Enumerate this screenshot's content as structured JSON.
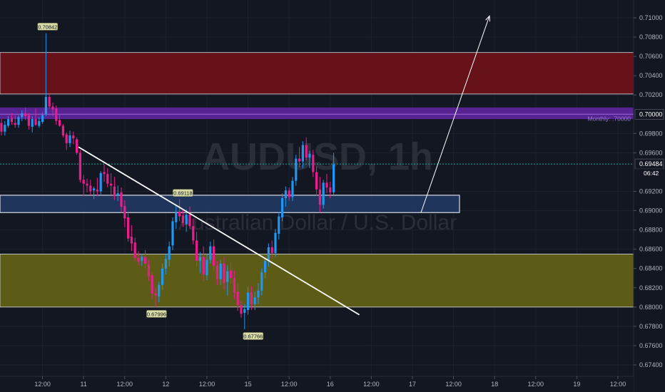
{
  "chart_data": {
    "type": "candlestick",
    "watermark": {
      "symbol": "AUDUSD, 1h",
      "description": "Australian Dollar / U.S. Dollar"
    },
    "y_axis": {
      "min": 0.673,
      "max": 0.7115,
      "ticks": [
        "0.67400",
        "0.67600",
        "0.67800",
        "0.68000",
        "0.68200",
        "0.68400",
        "0.68600",
        "0.68800",
        "0.69000",
        "0.69200",
        "0.69600",
        "0.69800",
        "0.70200",
        "0.70400",
        "0.70600",
        "0.70800",
        "0.71000"
      ],
      "tick_values": [
        0.674,
        0.676,
        0.678,
        0.68,
        0.682,
        0.684,
        0.686,
        0.688,
        0.69,
        0.692,
        0.696,
        0.698,
        0.702,
        0.704,
        0.706,
        0.708,
        0.71
      ]
    },
    "x_axis": {
      "labels": [
        "12:00",
        "11",
        "12:00",
        "12",
        "12:00",
        "15",
        "12:00",
        "16",
        "12:00",
        "17",
        "12:00",
        "18",
        "12:00",
        "19",
        "12:00"
      ],
      "hours": [
        12,
        24,
        36,
        48,
        60,
        72,
        84,
        96,
        108,
        120,
        132,
        144,
        156,
        168,
        180
      ]
    },
    "zones": [
      {
        "name": "supply-zone",
        "top": 0.7064,
        "bottom": 0.7021,
        "color": "#6b1118"
      },
      {
        "name": "monthly-level-zone",
        "top": 0.7007,
        "bottom": 0.6995,
        "color": "#5b2499"
      },
      {
        "name": "support-zone",
        "top": 0.6916,
        "bottom": 0.6898,
        "color": "#233b66"
      },
      {
        "name": "demand-zone",
        "top": 0.6855,
        "bottom": 0.68,
        "color": "#606016"
      }
    ],
    "price_labels": [
      {
        "text": "0.70842",
        "price": 0.70842,
        "hour": 13.5
      },
      {
        "text": "0.69118",
        "price": 0.69118,
        "hour": 53.0
      },
      {
        "text": "0.67996",
        "price": 0.67996,
        "hour": 45.3
      },
      {
        "text": "0.67766",
        "price": 0.67766,
        "hour": 73.5
      }
    ],
    "monthly_label": {
      "text": "Monthly: .70000",
      "price": 0.7
    },
    "current_price": {
      "text": "0.69484",
      "price": 0.69484
    },
    "secondary_price": {
      "price": 0.7,
      "text": "0.70000"
    },
    "countdown": "06:42",
    "trendline": {
      "from": {
        "hour": 22.5,
        "price": 0.6966
      },
      "to": {
        "hour": 104.5,
        "price": 0.6792
      }
    },
    "projection_arrow": {
      "from": {
        "hour": 122.5,
        "price": 0.6898
      },
      "to": {
        "hour": 142.5,
        "price": 0.7102
      }
    },
    "candles": [
      [
        0,
        0.6991,
        0.6995,
        0.6978,
        0.6982
      ],
      [
        1,
        0.6982,
        0.6993,
        0.6978,
        0.6989
      ],
      [
        2,
        0.6988,
        0.6998,
        0.6986,
        0.6995
      ],
      [
        3,
        0.6996,
        0.7001,
        0.6989,
        0.6992
      ],
      [
        4,
        0.6991,
        0.6999,
        0.6986,
        0.6989
      ],
      [
        5,
        0.6989,
        0.6999,
        0.6986,
        0.6997
      ],
      [
        6,
        0.6997,
        0.7004,
        0.6993,
        0.7001
      ],
      [
        7,
        0.7001,
        0.7007,
        0.6994,
        0.6998
      ],
      [
        8,
        0.6999,
        0.7001,
        0.6984,
        0.6988
      ],
      [
        9,
        0.6987,
        0.6998,
        0.6981,
        0.6995
      ],
      [
        10,
        0.6995,
        0.7006,
        0.6988,
        0.6989
      ],
      [
        11,
        0.6988,
        0.6997,
        0.6986,
        0.6993
      ],
      [
        12,
        0.6992,
        0.7002,
        0.699,
        0.6999
      ],
      [
        13,
        0.7,
        0.7084,
        0.6998,
        0.7018
      ],
      [
        14,
        0.7018,
        0.7022,
        0.7006,
        0.7008
      ],
      [
        15,
        0.7008,
        0.7012,
        0.6998,
        0.7005
      ],
      [
        16,
        0.7006,
        0.7009,
        0.6989,
        0.6993
      ],
      [
        17,
        0.6994,
        0.6999,
        0.6987,
        0.6988
      ],
      [
        18,
        0.6988,
        0.699,
        0.6976,
        0.6978
      ],
      [
        19,
        0.6979,
        0.6981,
        0.6963,
        0.697
      ],
      [
        20,
        0.697,
        0.6983,
        0.6966,
        0.6978
      ],
      [
        21,
        0.6978,
        0.6982,
        0.6969,
        0.6975
      ],
      [
        22,
        0.6974,
        0.6976,
        0.6958,
        0.696
      ],
      [
        23,
        0.696,
        0.6963,
        0.6929,
        0.6932
      ],
      [
        24,
        0.6932,
        0.6937,
        0.6915,
        0.6928
      ],
      [
        25,
        0.6928,
        0.6933,
        0.6919,
        0.6926
      ],
      [
        26,
        0.6926,
        0.6932,
        0.6916,
        0.692
      ],
      [
        27,
        0.6921,
        0.6925,
        0.6912,
        0.6923
      ],
      [
        28,
        0.6922,
        0.6934,
        0.6915,
        0.692
      ],
      [
        29,
        0.692,
        0.6941,
        0.6916,
        0.6939
      ],
      [
        30,
        0.694,
        0.6948,
        0.693,
        0.6938
      ],
      [
        31,
        0.6938,
        0.6944,
        0.6924,
        0.6928
      ],
      [
        32,
        0.6928,
        0.6939,
        0.6916,
        0.6926
      ],
      [
        33,
        0.6925,
        0.6935,
        0.6911,
        0.6915
      ],
      [
        34,
        0.6916,
        0.6926,
        0.691,
        0.6918
      ],
      [
        35,
        0.6919,
        0.6924,
        0.6898,
        0.6904
      ],
      [
        36,
        0.6905,
        0.6911,
        0.6883,
        0.6892
      ],
      [
        37,
        0.6893,
        0.6898,
        0.6868,
        0.6871
      ],
      [
        38,
        0.6873,
        0.6885,
        0.6858,
        0.6866
      ],
      [
        39,
        0.6867,
        0.6872,
        0.6848,
        0.6851
      ],
      [
        40,
        0.6851,
        0.6858,
        0.6843,
        0.6847
      ],
      [
        41,
        0.6848,
        0.6855,
        0.6843,
        0.6852
      ],
      [
        42,
        0.6852,
        0.6859,
        0.684,
        0.6845
      ],
      [
        43,
        0.6844,
        0.6849,
        0.6827,
        0.6832
      ],
      [
        44,
        0.6833,
        0.6836,
        0.6808,
        0.6814
      ],
      [
        45,
        0.6814,
        0.682,
        0.68,
        0.6812
      ],
      [
        46,
        0.6811,
        0.6826,
        0.6805,
        0.6823
      ],
      [
        47,
        0.6823,
        0.6845,
        0.6818,
        0.684
      ],
      [
        48,
        0.684,
        0.6855,
        0.6834,
        0.685
      ],
      [
        49,
        0.6849,
        0.6868,
        0.6842,
        0.6863
      ],
      [
        50,
        0.6864,
        0.6893,
        0.6859,
        0.6889
      ],
      [
        51,
        0.6888,
        0.6906,
        0.6881,
        0.6898
      ],
      [
        52,
        0.6899,
        0.6912,
        0.6889,
        0.6894
      ],
      [
        53,
        0.6895,
        0.6902,
        0.6883,
        0.6887
      ],
      [
        54,
        0.6886,
        0.6901,
        0.6878,
        0.6896
      ],
      [
        55,
        0.6896,
        0.6904,
        0.6881,
        0.6884
      ],
      [
        56,
        0.6884,
        0.6892,
        0.6865,
        0.6869
      ],
      [
        57,
        0.6869,
        0.6878,
        0.6842,
        0.6848
      ],
      [
        58,
        0.6848,
        0.6857,
        0.6835,
        0.6852
      ],
      [
        59,
        0.6852,
        0.6863,
        0.6827,
        0.6834
      ],
      [
        60,
        0.6833,
        0.6855,
        0.6828,
        0.6849
      ],
      [
        61,
        0.6849,
        0.6868,
        0.6845,
        0.6863
      ],
      [
        62,
        0.6863,
        0.687,
        0.6838,
        0.6843
      ],
      [
        63,
        0.6843,
        0.6848,
        0.6823,
        0.6829
      ],
      [
        64,
        0.6829,
        0.6849,
        0.6823,
        0.6845
      ],
      [
        65,
        0.6845,
        0.6852,
        0.6818,
        0.6825
      ],
      [
        66,
        0.6826,
        0.6843,
        0.6812,
        0.6837
      ],
      [
        67,
        0.6838,
        0.6846,
        0.6824,
        0.683
      ],
      [
        68,
        0.683,
        0.6838,
        0.6808,
        0.6815
      ],
      [
        69,
        0.6816,
        0.6824,
        0.6796,
        0.6802
      ],
      [
        70,
        0.6802,
        0.6806,
        0.6789,
        0.6793
      ],
      [
        71,
        0.6794,
        0.6803,
        0.6777,
        0.6798
      ],
      [
        72,
        0.6797,
        0.6821,
        0.6792,
        0.6815
      ],
      [
        73,
        0.6815,
        0.6822,
        0.6797,
        0.6803
      ],
      [
        74,
        0.6803,
        0.6816,
        0.6797,
        0.681
      ],
      [
        75,
        0.681,
        0.6825,
        0.6803,
        0.6817
      ],
      [
        76,
        0.6817,
        0.684,
        0.6812,
        0.6836
      ],
      [
        77,
        0.6836,
        0.6851,
        0.683,
        0.6848
      ],
      [
        78,
        0.6848,
        0.6866,
        0.6842,
        0.6862
      ],
      [
        79,
        0.6862,
        0.6869,
        0.685,
        0.6856
      ],
      [
        80,
        0.6856,
        0.6881,
        0.6852,
        0.6877
      ],
      [
        81,
        0.6876,
        0.6898,
        0.687,
        0.6894
      ],
      [
        82,
        0.6893,
        0.6918,
        0.6889,
        0.6913
      ],
      [
        83,
        0.6913,
        0.6925,
        0.6904,
        0.6921
      ],
      [
        84,
        0.6921,
        0.6924,
        0.691,
        0.6914
      ],
      [
        85,
        0.6914,
        0.6935,
        0.691,
        0.6931
      ],
      [
        86,
        0.6931,
        0.6958,
        0.6926,
        0.6954
      ],
      [
        87,
        0.6954,
        0.6966,
        0.6945,
        0.6951
      ],
      [
        88,
        0.6951,
        0.6972,
        0.6944,
        0.6968
      ],
      [
        89,
        0.6968,
        0.6976,
        0.6952,
        0.6955
      ],
      [
        90,
        0.6955,
        0.6962,
        0.6944,
        0.6959
      ],
      [
        91,
        0.6958,
        0.6963,
        0.6935,
        0.694
      ],
      [
        92,
        0.694,
        0.6946,
        0.6915,
        0.6922
      ],
      [
        93,
        0.6922,
        0.6935,
        0.6898,
        0.6906
      ],
      [
        94,
        0.6906,
        0.6932,
        0.6902,
        0.6929
      ],
      [
        95,
        0.6929,
        0.6938,
        0.6918,
        0.6924
      ],
      [
        96,
        0.6924,
        0.693,
        0.6913,
        0.6919
      ],
      [
        97,
        0.6919,
        0.696,
        0.6915,
        0.6948
      ]
    ]
  }
}
